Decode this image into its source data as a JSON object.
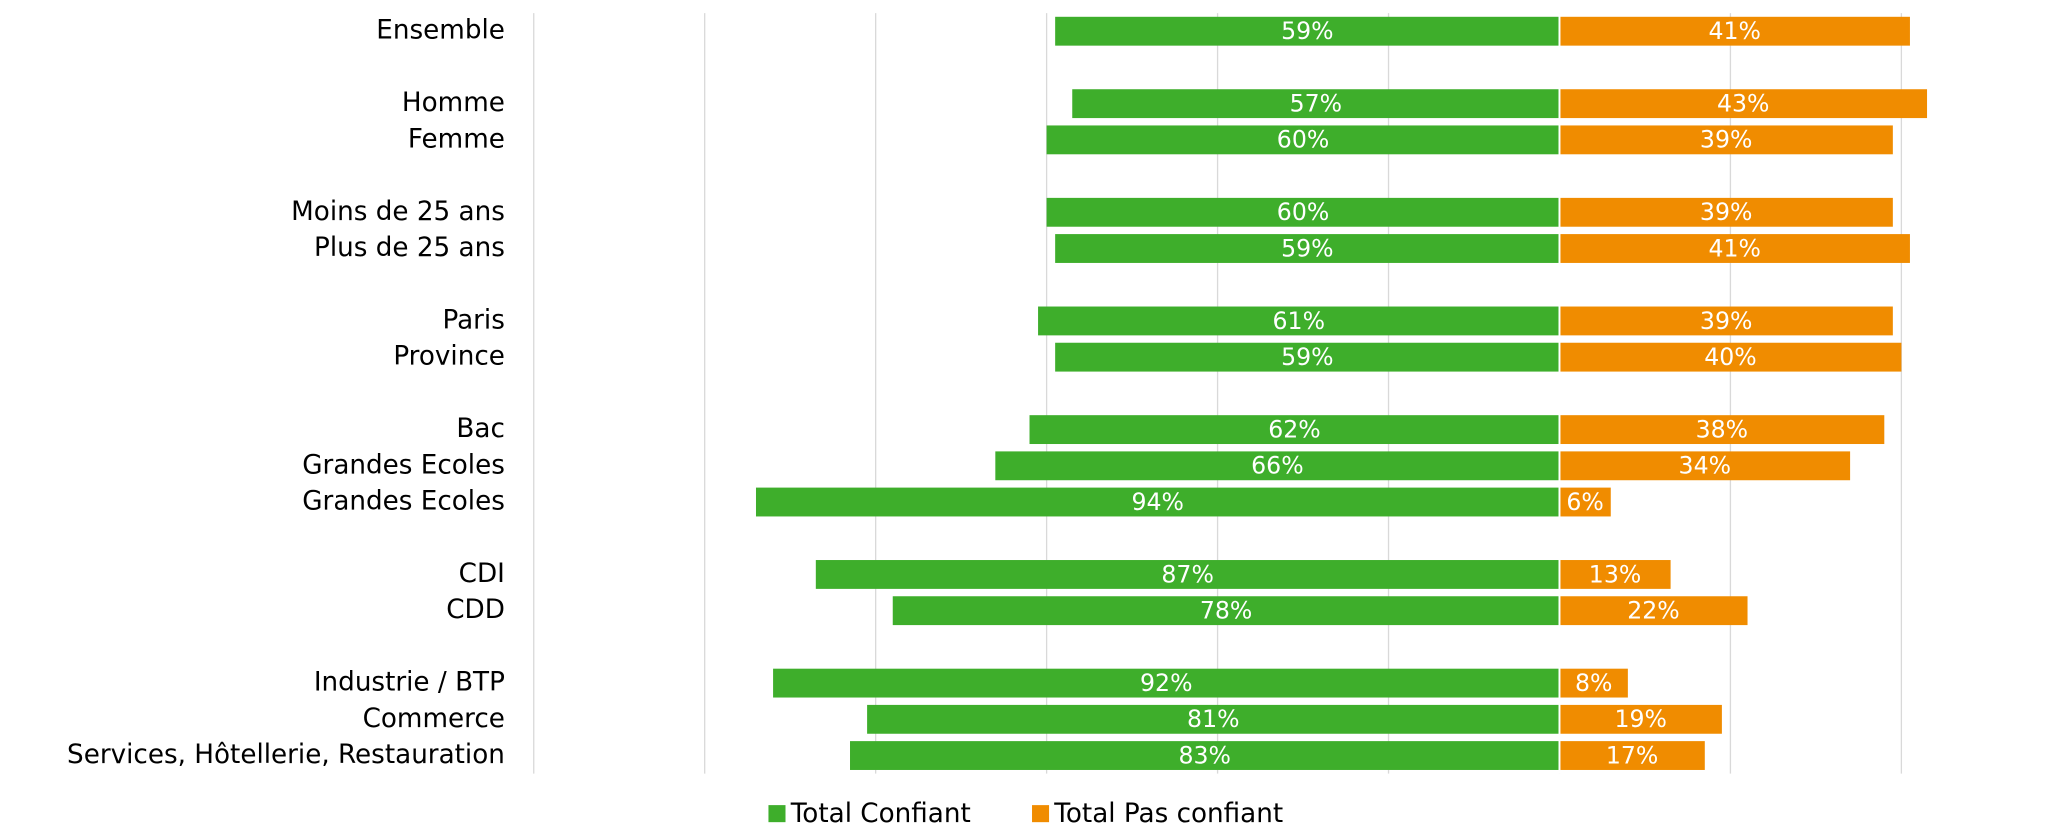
{
  "chart_data": {
    "type": "diverging-bar",
    "categories": [
      "Ensemble",
      null,
      "Homme",
      "Femme",
      null,
      "Moins de 25 ans",
      "Plus de 25 ans",
      null,
      "Paris",
      "Province",
      null,
      "Bac",
      "Grandes Ecoles",
      "Grandes Ecoles",
      null,
      "CDI",
      "CDD",
      null,
      "Industrie / BTP",
      "Commerce",
      "Services, Hôtellerie, Restauration"
    ],
    "series": [
      {
        "name": "Total Confiant",
        "color": "#3eae2b",
        "direction": "left",
        "values": [
          59,
          null,
          57,
          60,
          null,
          60,
          59,
          null,
          61,
          59,
          null,
          62,
          66,
          94,
          null,
          87,
          78,
          null,
          92,
          81,
          83
        ],
        "value_labels": [
          "59%",
          null,
          "57%",
          "60%",
          null,
          "60%",
          "59%",
          null,
          "61%",
          "59%",
          null,
          "62%",
          "66%",
          "94%",
          null,
          "87%",
          "78%",
          null,
          "92%",
          "81%",
          "83%"
        ]
      },
      {
        "name": "Total Pas confiant",
        "color": "#f08c00",
        "direction": "right",
        "values": [
          41,
          null,
          43,
          39,
          null,
          39,
          41,
          null,
          39,
          40,
          null,
          38,
          34,
          6,
          null,
          13,
          22,
          null,
          8,
          19,
          17
        ],
        "value_labels": [
          "41%",
          null,
          "43%",
          "39%",
          null,
          "39%",
          "41%",
          null,
          "39%",
          "40%",
          null,
          "38%",
          "34%",
          "6%",
          null,
          "13%",
          "22%",
          null,
          "8%",
          "19%",
          "17%"
        ]
      }
    ],
    "xlim": [
      -120,
      40
    ],
    "xticks": [
      -120,
      -100,
      -80,
      -60,
      -40,
      -20,
      0,
      20,
      40
    ],
    "grid": true,
    "legend": "bottom"
  }
}
